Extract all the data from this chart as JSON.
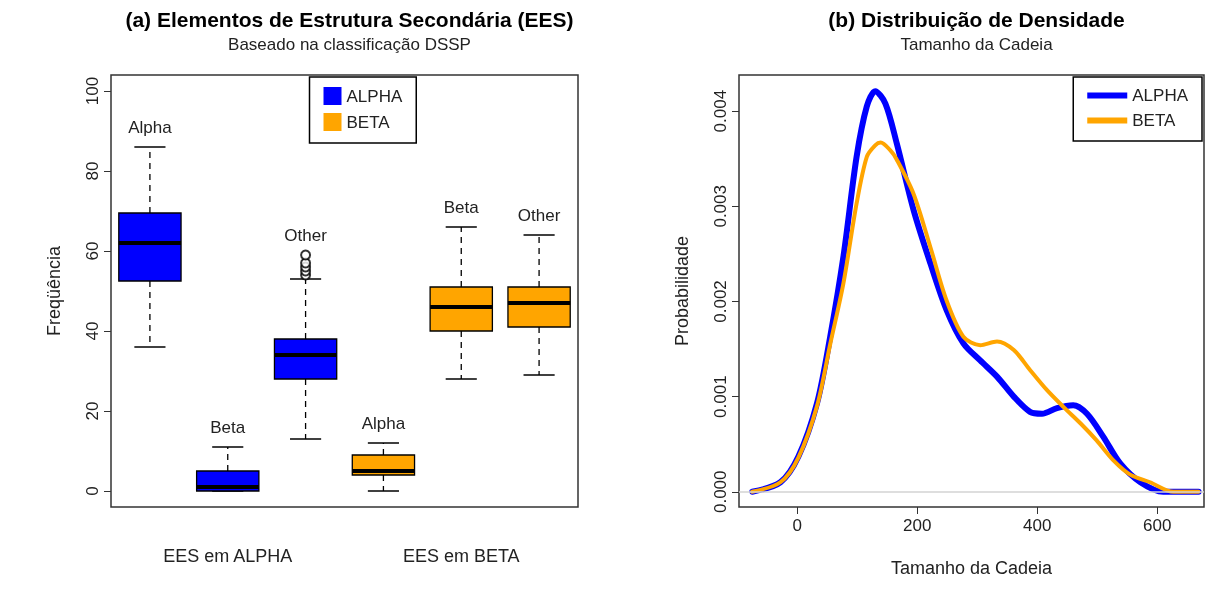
{
  "chart_data": [
    {
      "type": "box",
      "title": "(a) Elementos de Estrutura Secondária (EES)",
      "subtitle": "Baseado na classificação DSSP",
      "ylabel": "Freqüência",
      "categories": [
        null,
        "EES em ALPHA",
        null,
        null,
        "EES em BETA",
        null
      ],
      "ylim": [
        -4,
        104
      ],
      "yticks": [
        0,
        20,
        40,
        60,
        80,
        100
      ],
      "legend": "top",
      "grid": false,
      "series": [
        {
          "name": "ALPHA",
          "color": "#0000ff",
          "boxes": [
            {
              "low": 36,
              "q1": 52.5,
              "median": 62,
              "q3": 69.5,
              "high": 86
            },
            {
              "low": 0,
              "q1": 0,
              "median": 1,
              "q3": 5,
              "high": 11
            },
            {
              "low": 13,
              "q1": 28,
              "median": 34,
              "q3": 38,
              "high": 53,
              "outliers": [
                54,
                55,
                56,
                57,
                59
              ]
            },
            null,
            null,
            null
          ]
        },
        {
          "name": "BETA",
          "color": "#ffa500",
          "boxes": [
            null,
            null,
            null,
            {
              "low": 0,
              "q1": 4,
              "median": 5,
              "q3": 9,
              "high": 12
            },
            {
              "low": 28,
              "q1": 40,
              "median": 46,
              "q3": 51,
              "high": 66
            },
            {
              "low": 29,
              "q1": 41,
              "median": 47,
              "q3": 51,
              "high": 64
            }
          ]
        }
      ],
      "annotations": [
        "Alpha",
        "Beta",
        "Other",
        "Alpha",
        "Beta",
        "Other"
      ]
    },
    {
      "type": "line",
      "title": "(b) Distribuição de Densidade",
      "subtitle": "Tamanho da Cadeia",
      "xlabel": "Tamanho da Cadeia",
      "ylabel": "Probabilidade",
      "xlim": [
        -97,
        678
      ],
      "xticks": [
        0,
        200,
        400,
        600
      ],
      "ylim": [
        -0.00016,
        0.00438
      ],
      "yticks": [
        {
          "value": 0,
          "label": "0.000"
        },
        {
          "value": 0.001,
          "label": "0.001"
        },
        {
          "value": 0.002,
          "label": "0.002"
        },
        {
          "value": 0.003,
          "label": "0.003"
        },
        {
          "value": 0.004,
          "label": "0.004"
        }
      ],
      "legend": "top right",
      "grid": false,
      "marker": "none",
      "line_style": "solid",
      "ref_lines": [
        {
          "axis": "y",
          "value": 0,
          "color": "#d3d3d3"
        }
      ],
      "series": [
        {
          "name": "ALPHA",
          "color": "#0000ff",
          "x": [
            -75,
            -28,
            2,
            33,
            55,
            77,
            99,
            116,
            130,
            147,
            166,
            194,
            222,
            249,
            277,
            305,
            333,
            361,
            388,
            408,
            433,
            460,
            483,
            510,
            538,
            572,
            610,
            669
          ],
          "values": [
            0,
            0.0001,
            0.00037,
            0.00093,
            0.00163,
            0.00247,
            0.00352,
            0.00405,
            0.00421,
            0.00408,
            0.00366,
            0.00296,
            0.0024,
            0.00191,
            0.00156,
            0.00138,
            0.00121,
            0.001,
            0.00084,
            0.00082,
            0.00088,
            0.00091,
            0.00082,
            0.00058,
            0.0003,
            0.0001,
            0,
            0
          ]
        },
        {
          "name": "BETA",
          "color": "#ffa500",
          "x": [
            -75,
            -28,
            2,
            33,
            55,
            77,
            99,
            116,
            130,
            139,
            155,
            166,
            194,
            222,
            249,
            277,
            305,
            333,
            361,
            388,
            416,
            444,
            472,
            499,
            527,
            555,
            588,
            627,
            669
          ],
          "values": [
            0,
            0.0001,
            0.00036,
            0.0009,
            0.00155,
            0.00219,
            0.00303,
            0.00352,
            0.00364,
            0.00367,
            0.00359,
            0.00349,
            0.00313,
            0.00257,
            0.00201,
            0.00163,
            0.00154,
            0.00158,
            0.00149,
            0.00128,
            0.00107,
            0.00089,
            0.00072,
            0.00054,
            0.00033,
            0.00018,
            0.0001,
            0,
            0
          ]
        }
      ]
    }
  ]
}
